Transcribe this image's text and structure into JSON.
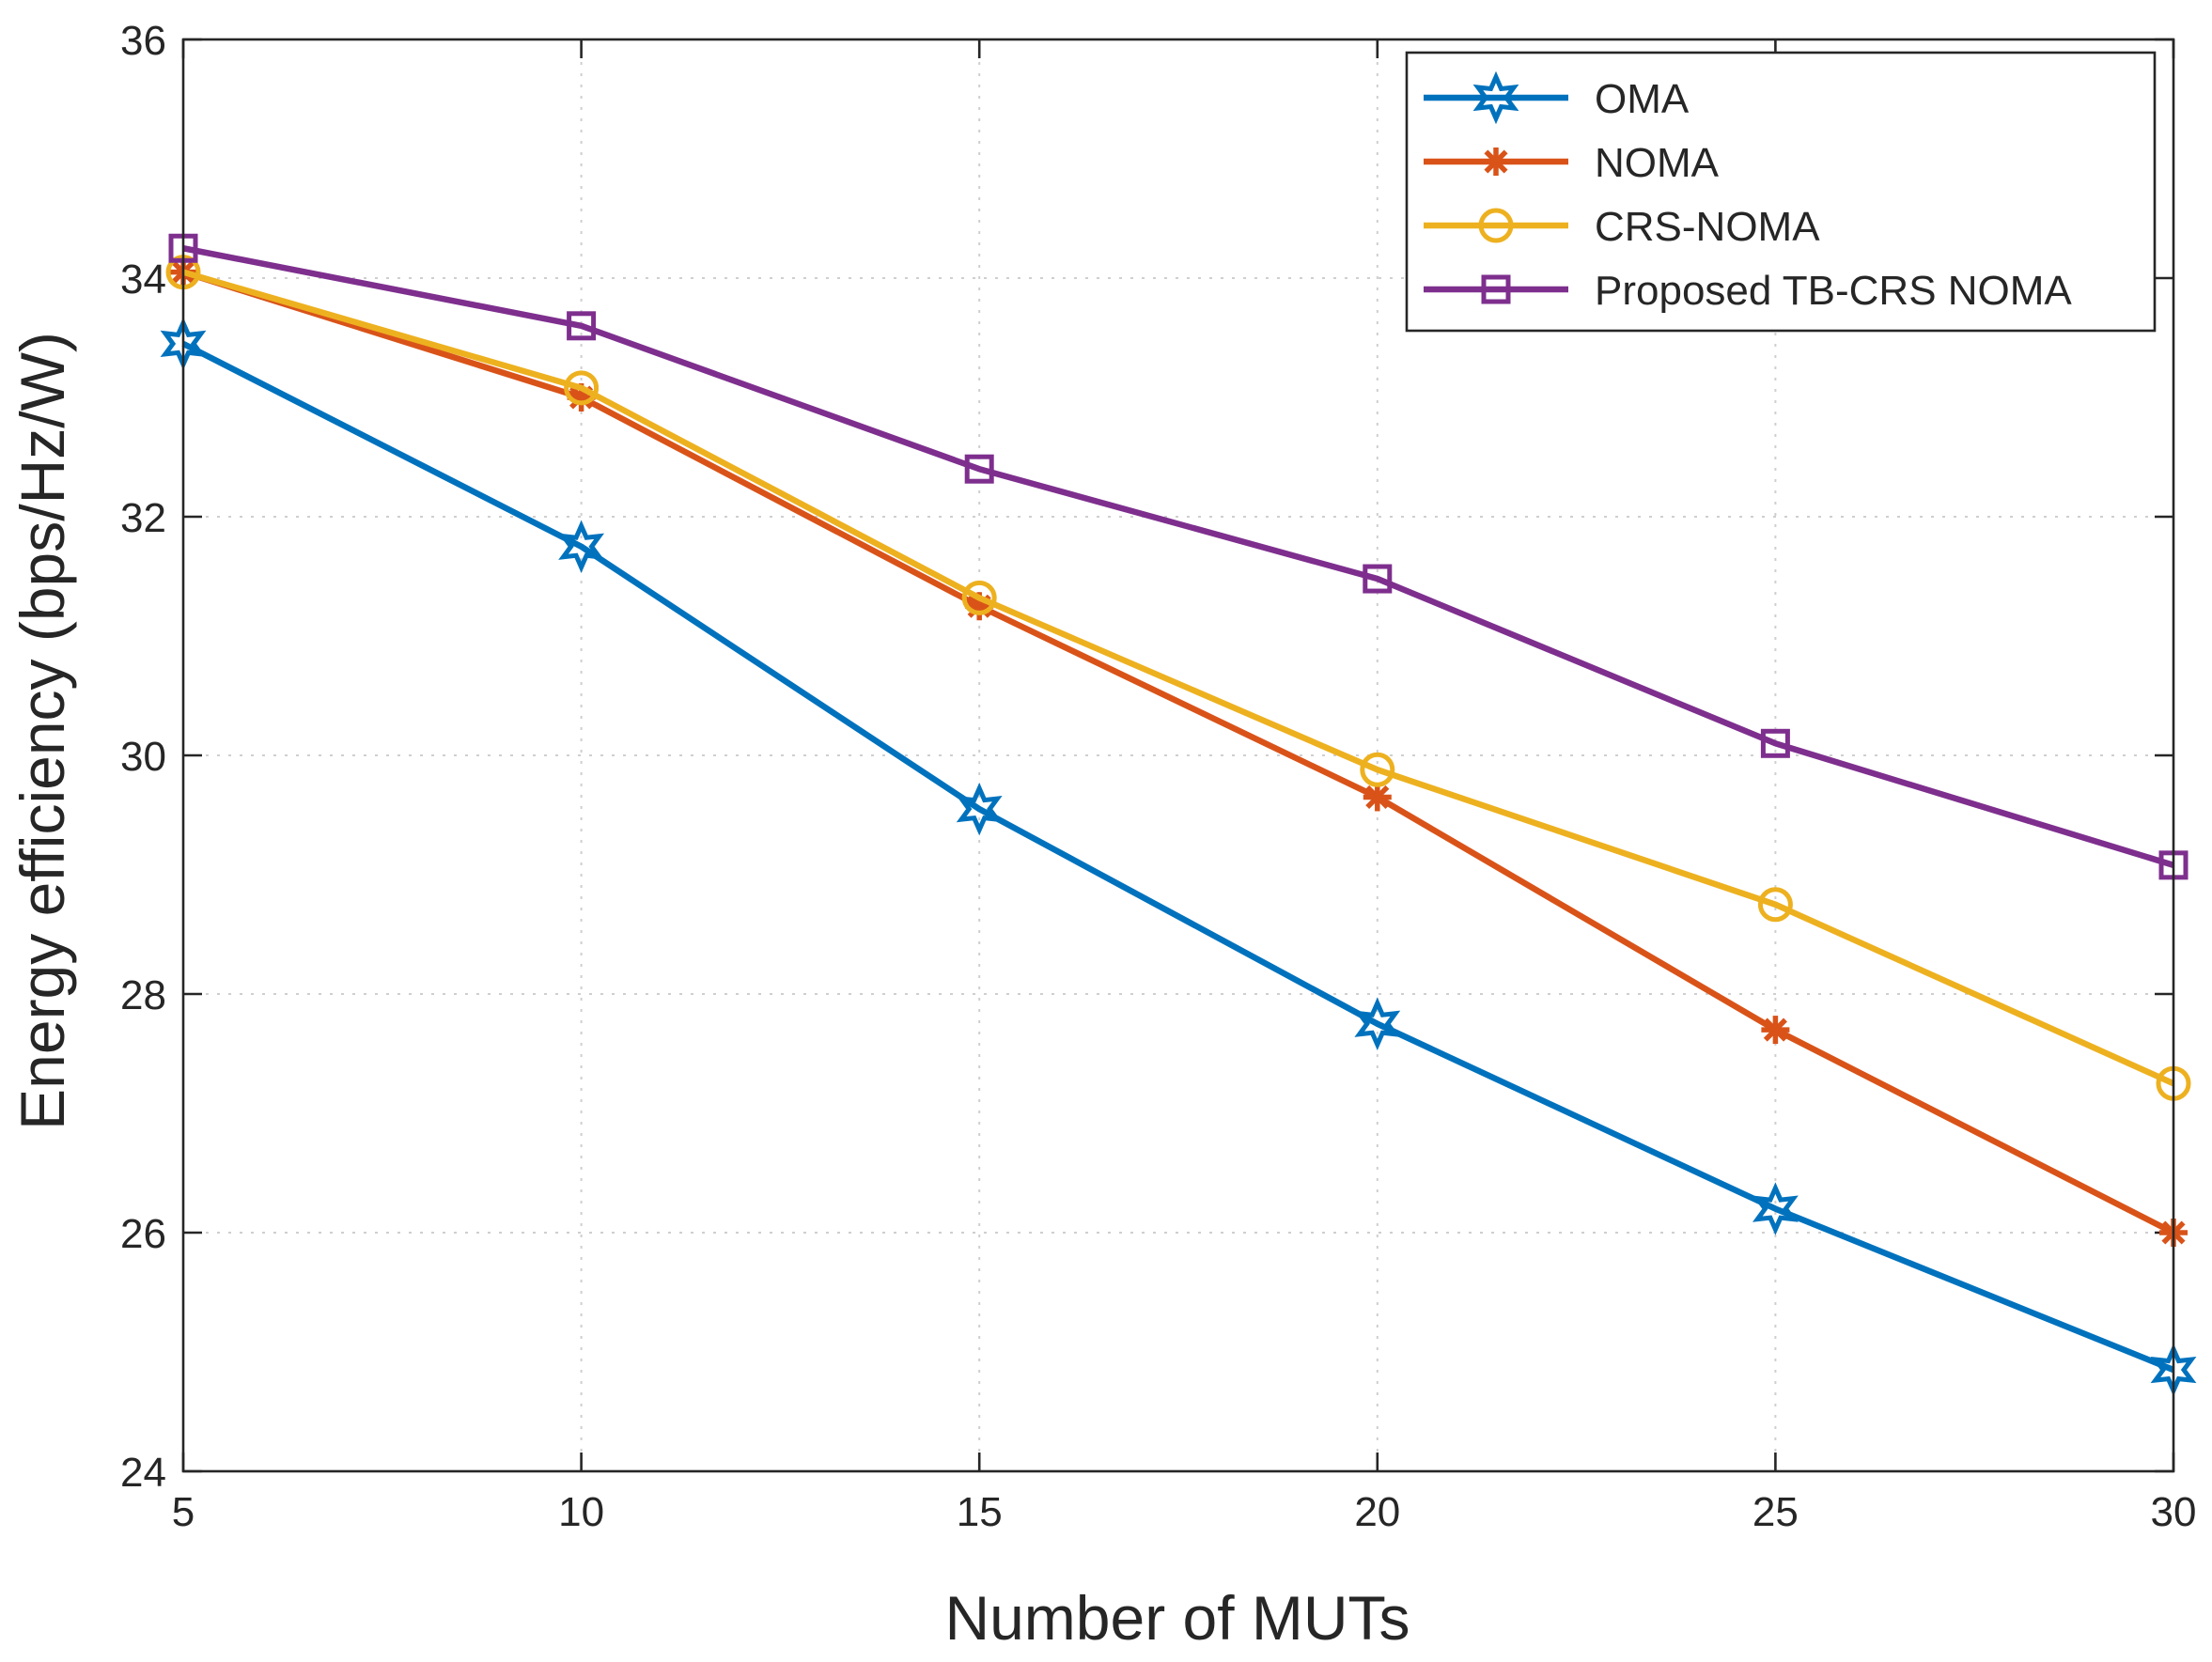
{
  "chart_data": {
    "type": "line",
    "title": "",
    "xlabel": "Number of MUTs",
    "ylabel": "Energy efficiency (bps/Hz/W)",
    "xlim": [
      5,
      30
    ],
    "ylim": [
      24,
      36
    ],
    "xticks": [
      5,
      10,
      15,
      20,
      25,
      30
    ],
    "yticks": [
      24,
      26,
      28,
      30,
      32,
      34,
      36
    ],
    "grid": true,
    "legend_position": "top-right",
    "x": [
      5,
      10,
      15,
      20,
      25,
      30
    ],
    "series": [
      {
        "name": "OMA",
        "values": [
          33.45,
          31.75,
          29.55,
          27.75,
          26.2,
          24.85
        ],
        "color": "#0072BD",
        "marker": "hexagram"
      },
      {
        "name": "NOMA",
        "values": [
          34.05,
          33.0,
          31.25,
          29.65,
          27.7,
          26.0
        ],
        "color": "#D95319",
        "marker": "asterisk"
      },
      {
        "name": "CRS-NOMA",
        "values": [
          34.05,
          33.08,
          31.32,
          29.88,
          28.75,
          27.25
        ],
        "color": "#EDB120",
        "marker": "circle"
      },
      {
        "name": "Proposed TB-CRS NOMA",
        "values": [
          34.25,
          33.6,
          32.4,
          31.48,
          30.1,
          29.08
        ],
        "color": "#7E2F8E",
        "marker": "square"
      }
    ]
  }
}
